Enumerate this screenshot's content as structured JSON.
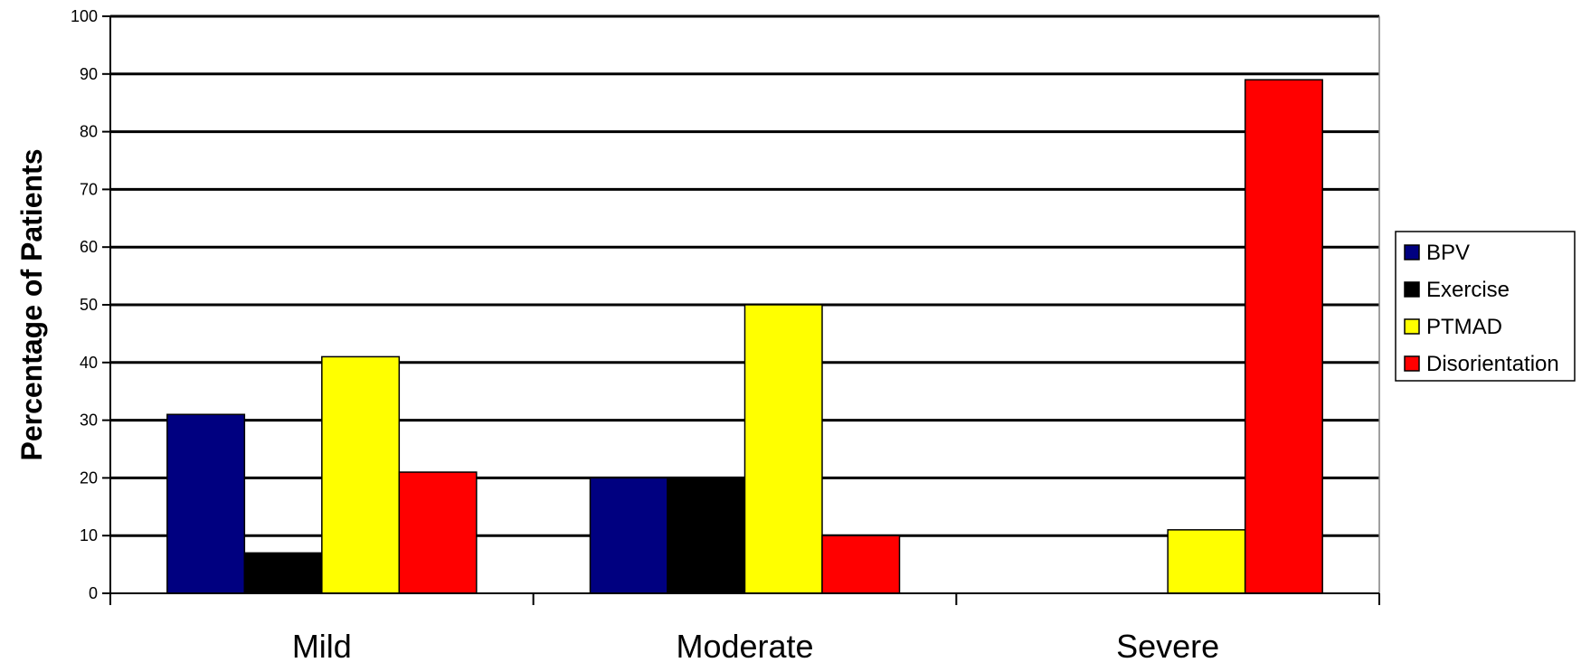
{
  "chart_data": {
    "type": "bar",
    "title": "",
    "xlabel": "",
    "ylabel": "Percentage of Patients",
    "categories": [
      "Mild",
      "Moderate",
      "Severe"
    ],
    "series": [
      {
        "name": "BPV",
        "color": "#000080",
        "values": [
          31,
          20,
          0
        ]
      },
      {
        "name": "Exercise",
        "color": "#000000",
        "values": [
          7,
          20,
          0
        ]
      },
      {
        "name": "PTMAD",
        "color": "#FFFF00",
        "values": [
          41,
          50,
          11
        ]
      },
      {
        "name": "Disorientation",
        "color": "#FF0000",
        "values": [
          21,
          10,
          89
        ]
      }
    ],
    "ylim": [
      0,
      100
    ],
    "yticks": [
      0,
      10,
      20,
      30,
      40,
      50,
      60,
      70,
      80,
      90,
      100
    ],
    "grid": true,
    "legend_position": "right"
  }
}
